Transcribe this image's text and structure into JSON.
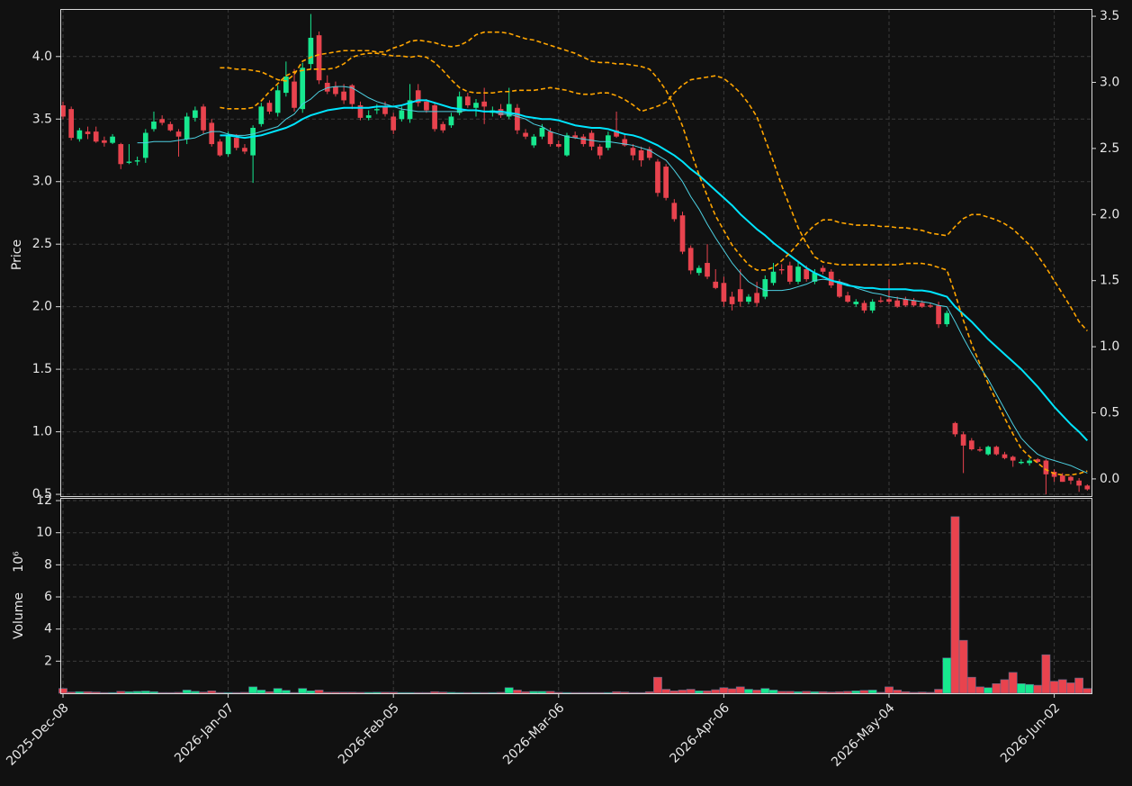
{
  "chart_data": {
    "type": "candlestick",
    "ylabel": "Price",
    "grid": true,
    "up_color": "#17e88f",
    "down_color": "#e8434e",
    "categories": [
      "2025-Dec-08",
      null,
      null,
      null,
      null,
      null,
      null,
      null,
      null,
      null,
      null,
      null,
      null,
      null,
      null,
      null,
      null,
      null,
      null,
      null,
      "2026-Jan-07",
      null,
      null,
      null,
      null,
      null,
      null,
      null,
      null,
      null,
      null,
      null,
      null,
      null,
      null,
      null,
      null,
      null,
      null,
      null,
      "2026-Feb-05",
      null,
      null,
      null,
      null,
      null,
      null,
      null,
      null,
      null,
      null,
      null,
      null,
      null,
      null,
      null,
      null,
      null,
      null,
      null,
      "2026-Mar-06",
      null,
      null,
      null,
      null,
      null,
      null,
      null,
      null,
      null,
      null,
      null,
      null,
      null,
      null,
      null,
      null,
      null,
      null,
      null,
      "2026-Apr-06",
      null,
      null,
      null,
      null,
      null,
      null,
      null,
      null,
      null,
      null,
      null,
      null,
      null,
      null,
      null,
      null,
      null,
      null,
      null,
      "2026-May-04",
      null,
      null,
      null,
      null,
      null,
      null,
      null,
      null,
      null,
      null,
      null,
      null,
      null,
      null,
      null,
      null,
      null,
      null,
      null,
      "2026-Jun-02",
      null,
      null,
      null,
      null
    ],
    "open": [
      3.61,
      3.58,
      3.34,
      3.4,
      3.4,
      3.33,
      3.31,
      3.3,
      3.15,
      3.16,
      3.19,
      3.42,
      3.5,
      3.46,
      3.4,
      3.34,
      3.51,
      3.6,
      3.47,
      3.32,
      3.22,
      3.35,
      3.27,
      3.21,
      3.46,
      3.63,
      3.55,
      3.71,
      3.8,
      3.58,
      3.94,
      4.17,
      3.79,
      3.76,
      3.72,
      3.77,
      3.61,
      3.51,
      3.57,
      3.6,
      3.52,
      3.5,
      3.5,
      3.73,
      3.64,
      3.61,
      3.46,
      3.45,
      3.55,
      3.68,
      3.59,
      3.64,
      3.55,
      3.58,
      3.52,
      3.59,
      3.39,
      3.29,
      3.36,
      3.4,
      3.3,
      3.21,
      3.37,
      3.36,
      3.39,
      3.28,
      3.27,
      3.41,
      3.34,
      3.27,
      3.25,
      3.26,
      3.16,
      3.12,
      2.83,
      2.73,
      2.47,
      2.27,
      2.35,
      2.2,
      2.19,
      2.08,
      2.14,
      2.04,
      2.11,
      2.08,
      2.19,
      2.3,
      2.33,
      2.2,
      2.3,
      2.2,
      2.31,
      2.28,
      2.19,
      2.09,
      2.02,
      2.03,
      1.97,
      2.05,
      2.06,
      2.05,
      2.06,
      2.05,
      2.03,
      2.01,
      2.01,
      1.86,
      1.07,
      0.98,
      0.93,
      0.86,
      0.82,
      0.88,
      0.82,
      0.8,
      0.75,
      0.75,
      0.78,
      0.77,
      0.68,
      0.65,
      0.64,
      0.61,
      0.57
    ],
    "high": [
      3.64,
      3.6,
      3.43,
      3.44,
      3.44,
      3.36,
      3.38,
      3.31,
      3.3,
      3.2,
      3.42,
      3.56,
      3.53,
      3.48,
      3.42,
      3.55,
      3.6,
      3.62,
      3.5,
      3.34,
      3.4,
      3.38,
      3.3,
      3.45,
      3.63,
      3.65,
      3.77,
      3.96,
      3.9,
      3.95,
      4.34,
      4.2,
      3.85,
      3.8,
      3.78,
      3.78,
      3.64,
      3.57,
      3.62,
      3.64,
      3.55,
      3.6,
      3.78,
      3.78,
      3.66,
      3.63,
      3.48,
      3.55,
      3.72,
      3.71,
      3.66,
      3.75,
      3.6,
      3.62,
      3.75,
      3.62,
      3.42,
      3.38,
      3.46,
      3.43,
      3.33,
      3.39,
      3.4,
      3.38,
      3.41,
      3.3,
      3.4,
      3.56,
      3.38,
      3.3,
      3.28,
      3.28,
      3.18,
      3.14,
      2.86,
      2.76,
      2.49,
      2.33,
      2.5,
      2.3,
      2.24,
      2.12,
      2.3,
      2.1,
      2.2,
      2.25,
      2.35,
      2.34,
      2.36,
      2.36,
      2.33,
      2.3,
      2.33,
      2.3,
      2.22,
      2.12,
      2.06,
      2.05,
      2.06,
      2.08,
      2.22,
      2.08,
      2.08,
      2.07,
      2.05,
      2.03,
      2.04,
      1.97,
      1.08,
      1.0,
      0.95,
      0.88,
      0.89,
      0.89,
      0.84,
      0.81,
      0.78,
      0.79,
      0.79,
      0.78,
      0.7,
      0.67,
      0.65,
      0.63,
      0.58
    ],
    "low": [
      3.5,
      3.33,
      3.32,
      3.34,
      3.31,
      3.28,
      3.3,
      3.1,
      3.14,
      3.13,
      3.15,
      3.4,
      3.45,
      3.4,
      3.2,
      3.3,
      3.48,
      3.38,
      3.28,
      3.2,
      3.2,
      3.25,
      3.22,
      2.99,
      3.44,
      3.54,
      3.52,
      3.68,
      3.56,
      3.55,
      3.9,
      3.78,
      3.7,
      3.68,
      3.62,
      3.58,
      3.49,
      3.49,
      3.54,
      3.52,
      3.38,
      3.48,
      3.47,
      3.6,
      3.55,
      3.4,
      3.39,
      3.43,
      3.53,
      3.59,
      3.52,
      3.46,
      3.52,
      3.51,
      3.5,
      3.38,
      3.34,
      3.27,
      3.34,
      3.28,
      3.27,
      3.2,
      3.34,
      3.28,
      3.25,
      3.18,
      3.25,
      3.35,
      3.28,
      3.17,
      3.12,
      3.17,
      2.88,
      2.85,
      2.68,
      2.42,
      2.26,
      2.25,
      2.22,
      2.14,
      2.0,
      1.97,
      2.0,
      2.02,
      2.0,
      2.06,
      2.17,
      2.26,
      2.18,
      2.18,
      2.2,
      2.18,
      2.26,
      2.15,
      2.07,
      2.03,
      2.0,
      1.95,
      1.95,
      2.03,
      2.02,
      1.99,
      2.0,
      2.0,
      1.99,
      1.99,
      1.83,
      1.84,
      0.96,
      0.67,
      0.85,
      0.84,
      0.81,
      0.81,
      0.78,
      0.72,
      0.74,
      0.73,
      0.75,
      0.5,
      0.6,
      0.6,
      0.58,
      0.52,
      0.53
    ],
    "close": [
      3.52,
      3.35,
      3.41,
      3.38,
      3.32,
      3.31,
      3.36,
      3.14,
      3.16,
      3.17,
      3.39,
      3.48,
      3.47,
      3.41,
      3.36,
      3.52,
      3.57,
      3.41,
      3.3,
      3.21,
      3.37,
      3.27,
      3.24,
      3.43,
      3.6,
      3.56,
      3.73,
      3.84,
      3.59,
      3.91,
      4.15,
      3.81,
      3.72,
      3.7,
      3.65,
      3.62,
      3.51,
      3.53,
      3.58,
      3.54,
      3.41,
      3.57,
      3.65,
      3.63,
      3.57,
      3.42,
      3.41,
      3.52,
      3.68,
      3.61,
      3.63,
      3.6,
      3.57,
      3.53,
      3.62,
      3.41,
      3.36,
      3.36,
      3.43,
      3.3,
      3.28,
      3.37,
      3.35,
      3.3,
      3.28,
      3.21,
      3.37,
      3.36,
      3.29,
      3.21,
      3.17,
      3.19,
      2.91,
      2.87,
      2.7,
      2.44,
      2.29,
      2.31,
      2.24,
      2.15,
      2.04,
      2.02,
      2.04,
      2.08,
      2.03,
      2.22,
      2.28,
      2.29,
      2.2,
      2.32,
      2.22,
      2.27,
      2.28,
      2.17,
      2.08,
      2.04,
      2.04,
      1.97,
      2.04,
      2.04,
      2.04,
      2.0,
      2.01,
      2.01,
      2.0,
      2.0,
      1.86,
      1.95,
      0.98,
      0.89,
      0.86,
      0.85,
      0.88,
      0.82,
      0.79,
      0.77,
      0.76,
      0.77,
      0.76,
      0.66,
      0.64,
      0.6,
      0.61,
      0.57,
      0.54
    ],
    "ylim": [
      0.486,
      4.38
    ],
    "yticks": [
      0.5,
      {
        "value": 1,
        "label": "1.0"
      },
      1.5,
      {
        "value": 2,
        "label": "2.0"
      },
      2.5,
      {
        "value": 3,
        "label": "3.0"
      },
      3.5,
      {
        "value": 4,
        "label": "4.0"
      }
    ],
    "y2lim": [
      -0.13,
      3.555
    ],
    "y2ticks": [
      {
        "value": 0,
        "label": "0.0"
      },
      0.5,
      {
        "value": 1,
        "label": "1.0"
      },
      1.5,
      {
        "value": 2,
        "label": "2.0"
      },
      2.5,
      {
        "value": 3,
        "label": "3.0"
      },
      3.5
    ],
    "series": [
      {
        "color": "#4dd0e1",
        "width": 1,
        "values": [
          null,
          null,
          null,
          null,
          null,
          null,
          null,
          null,
          null,
          3.31,
          3.31,
          3.32,
          3.32,
          3.32,
          3.33,
          3.34,
          3.35,
          3.38,
          3.4,
          3.4,
          3.38,
          3.37,
          3.37,
          3.38,
          3.4,
          3.42,
          3.44,
          3.5,
          3.54,
          3.62,
          3.66,
          3.72,
          3.75,
          3.76,
          3.76,
          3.75,
          3.71,
          3.67,
          3.64,
          3.62,
          3.6,
          3.58,
          3.57,
          3.56,
          3.56,
          3.56,
          3.56,
          3.56,
          3.56,
          3.57,
          3.57,
          3.56,
          3.56,
          3.54,
          3.54,
          3.52,
          3.5,
          3.46,
          3.44,
          3.4,
          3.38,
          3.36,
          3.35,
          3.34,
          3.33,
          3.32,
          3.32,
          3.31,
          3.3,
          3.29,
          3.27,
          3.25,
          3.21,
          3.17,
          3.09,
          3.0,
          2.88,
          2.78,
          2.66,
          2.55,
          2.45,
          2.35,
          2.27,
          2.2,
          2.16,
          2.13,
          2.13,
          2.13,
          2.14,
          2.16,
          2.18,
          2.21,
          2.22,
          2.21,
          2.2,
          2.18,
          2.15,
          2.13,
          2.11,
          2.1,
          2.08,
          2.07,
          2.06,
          2.05,
          2.04,
          2.03,
          2.01,
          2.0,
          1.88,
          1.75,
          1.63,
          1.52,
          1.42,
          1.3,
          1.18,
          1.06,
          0.95,
          0.88,
          0.82,
          0.79,
          0.77,
          0.75,
          0.73,
          0.7,
          0.67
        ]
      },
      {
        "color": "#00e5ff",
        "width": 2,
        "values": [
          null,
          null,
          null,
          null,
          null,
          null,
          null,
          null,
          null,
          null,
          null,
          null,
          null,
          null,
          null,
          null,
          null,
          null,
          null,
          3.37,
          3.37,
          3.36,
          3.35,
          3.36,
          3.37,
          3.39,
          3.41,
          3.43,
          3.46,
          3.5,
          3.53,
          3.55,
          3.57,
          3.58,
          3.59,
          3.59,
          3.59,
          3.59,
          3.6,
          3.6,
          3.6,
          3.61,
          3.63,
          3.65,
          3.65,
          3.63,
          3.61,
          3.59,
          3.58,
          3.57,
          3.57,
          3.56,
          3.56,
          3.56,
          3.55,
          3.54,
          3.52,
          3.51,
          3.5,
          3.5,
          3.49,
          3.47,
          3.45,
          3.44,
          3.43,
          3.43,
          3.42,
          3.4,
          3.38,
          3.37,
          3.35,
          3.32,
          3.29,
          3.25,
          3.21,
          3.16,
          3.1,
          3.05,
          2.99,
          2.93,
          2.87,
          2.81,
          2.74,
          2.68,
          2.62,
          2.57,
          2.51,
          2.46,
          2.41,
          2.36,
          2.31,
          2.27,
          2.24,
          2.21,
          2.19,
          2.17,
          2.16,
          2.15,
          2.15,
          2.14,
          2.14,
          2.14,
          2.14,
          2.13,
          2.13,
          2.12,
          2.1,
          2.08,
          2.0,
          1.94,
          1.88,
          1.81,
          1.74,
          1.68,
          1.62,
          1.56,
          1.5,
          1.43,
          1.36,
          1.28,
          1.2,
          1.13,
          1.06,
          1.0,
          0.93
        ]
      },
      {
        "color": "#ffa500",
        "width": 1.6,
        "dashed": true,
        "axis": "y2",
        "values": [
          null,
          null,
          null,
          null,
          null,
          null,
          null,
          null,
          null,
          null,
          null,
          null,
          null,
          null,
          null,
          null,
          null,
          null,
          null,
          3.11,
          3.11,
          3.1,
          3.1,
          3.09,
          3.08,
          3.05,
          3.02,
          3.01,
          3.06,
          3.16,
          3.19,
          3.21,
          3.22,
          3.23,
          3.24,
          3.24,
          3.24,
          3.24,
          3.23,
          3.23,
          3.26,
          3.28,
          3.31,
          3.32,
          3.31,
          3.3,
          3.28,
          3.27,
          3.28,
          3.31,
          3.36,
          3.38,
          3.38,
          3.38,
          3.37,
          3.35,
          3.33,
          3.32,
          3.3,
          3.28,
          3.26,
          3.24,
          3.22,
          3.19,
          3.16,
          3.15,
          3.15,
          3.14,
          3.14,
          3.13,
          3.12,
          3.1,
          3.03,
          2.94,
          2.82,
          2.67,
          2.48,
          2.3,
          2.14,
          1.99,
          1.88,
          1.77,
          1.69,
          1.62,
          1.58,
          1.58,
          1.6,
          1.65,
          1.71,
          1.78,
          1.86,
          1.92,
          1.96,
          1.96,
          1.94,
          1.93,
          1.92,
          1.92,
          1.92,
          1.91,
          1.91,
          1.9,
          1.9,
          1.89,
          1.88,
          1.86,
          1.85,
          1.84,
          1.91,
          1.97,
          2.0,
          2.0,
          1.98,
          1.96,
          1.93,
          1.89,
          1.83,
          1.77,
          1.69,
          1.6,
          1.5,
          1.4,
          1.3,
          1.19,
          1.12
        ]
      },
      {
        "color": "#ffa500",
        "width": 1.6,
        "dashed": true,
        "axis": "y2",
        "values": [
          null,
          null,
          null,
          null,
          null,
          null,
          null,
          null,
          null,
          null,
          null,
          null,
          null,
          null,
          null,
          null,
          null,
          null,
          null,
          2.81,
          2.8,
          2.8,
          2.8,
          2.81,
          2.86,
          2.93,
          2.99,
          3.05,
          3.08,
          3.09,
          3.1,
          3.1,
          3.1,
          3.11,
          3.14,
          3.19,
          3.21,
          3.22,
          3.22,
          3.21,
          3.2,
          3.2,
          3.19,
          3.2,
          3.19,
          3.15,
          3.09,
          3.02,
          2.96,
          2.93,
          2.92,
          2.92,
          2.92,
          2.93,
          2.93,
          2.94,
          2.94,
          2.94,
          2.95,
          2.96,
          2.95,
          2.94,
          2.92,
          2.91,
          2.91,
          2.92,
          2.92,
          2.9,
          2.87,
          2.83,
          2.78,
          2.8,
          2.82,
          2.85,
          2.92,
          2.98,
          3.02,
          3.03,
          3.04,
          3.05,
          3.03,
          2.98,
          2.92,
          2.84,
          2.74,
          2.57,
          2.4,
          2.22,
          2.06,
          1.9,
          1.78,
          1.68,
          1.64,
          1.63,
          1.62,
          1.62,
          1.62,
          1.62,
          1.62,
          1.62,
          1.62,
          1.62,
          1.63,
          1.63,
          1.63,
          1.62,
          1.6,
          1.58,
          1.4,
          1.2,
          1.02,
          0.87,
          0.72,
          0.59,
          0.46,
          0.34,
          0.23,
          0.17,
          0.12,
          0.07,
          0.04,
          0.03,
          0.03,
          0.04,
          0.06
        ]
      }
    ],
    "volume": {
      "ylabel": "Volume",
      "offset_label": "10⁶",
      "ylim": [
        0,
        12.17
      ],
      "yticks": [
        2,
        4,
        6,
        8,
        10,
        12
      ],
      "values": [
        0.3,
        0.08,
        0.1,
        0.1,
        0.08,
        0.05,
        0.05,
        0.12,
        0.1,
        0.12,
        0.14,
        0.1,
        0.05,
        0.05,
        0.06,
        0.2,
        0.12,
        0.08,
        0.15,
        0.05,
        0.05,
        0.05,
        0.06,
        0.4,
        0.2,
        0.1,
        0.3,
        0.18,
        0.05,
        0.3,
        0.15,
        0.2,
        0.07,
        0.07,
        0.07,
        0.07,
        0.06,
        0.06,
        0.07,
        0.07,
        0.07,
        0.05,
        0.05,
        0.05,
        0.05,
        0.1,
        0.08,
        0.06,
        0.05,
        0.05,
        0.05,
        0.05,
        0.05,
        0.06,
        0.35,
        0.2,
        0.1,
        0.12,
        0.12,
        0.12,
        0.06,
        0.05,
        0.05,
        0.05,
        0.05,
        0.05,
        0.05,
        0.1,
        0.08,
        0.05,
        0.05,
        0.1,
        1.0,
        0.25,
        0.15,
        0.2,
        0.25,
        0.15,
        0.15,
        0.22,
        0.35,
        0.28,
        0.4,
        0.25,
        0.2,
        0.3,
        0.2,
        0.12,
        0.12,
        0.1,
        0.12,
        0.1,
        0.1,
        0.08,
        0.1,
        0.12,
        0.15,
        0.18,
        0.2,
        0.06,
        0.4,
        0.2,
        0.1,
        0.06,
        0.08,
        0.06,
        0.25,
        2.2,
        11.0,
        3.3,
        1.0,
        0.4,
        0.35,
        0.6,
        0.85,
        1.3,
        0.6,
        0.55,
        0.5,
        2.4,
        0.75,
        0.85,
        0.65,
        0.95,
        0.3
      ]
    }
  }
}
